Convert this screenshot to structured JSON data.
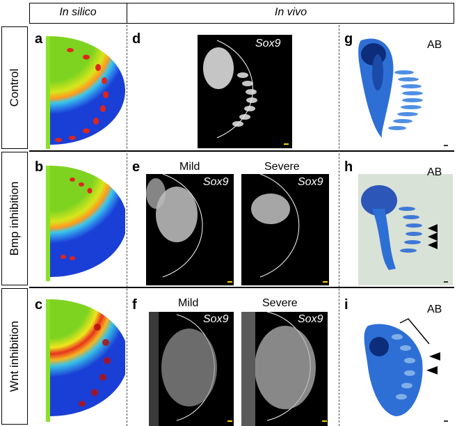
{
  "header": {
    "col1": "In silico",
    "col2": "In vivo"
  },
  "rows": [
    {
      "label": "Control"
    },
    {
      "label": "Bmp inhibition"
    },
    {
      "label": "Wnt inhibition"
    }
  ],
  "panels": {
    "a": "a",
    "b": "b",
    "c": "c",
    "d": "d",
    "e": "e",
    "f": "f",
    "g": "g",
    "h": "h",
    "i": "i"
  },
  "conditions": {
    "mild": "Mild",
    "severe": "Severe"
  },
  "gene": "Sox9",
  "stain": "AB",
  "colors": {
    "sim_bg": "#7ed321",
    "sim_blue": "#1a4fe0",
    "spot_red": "#e0261b",
    "stain_blue": "#2a6fd6"
  }
}
